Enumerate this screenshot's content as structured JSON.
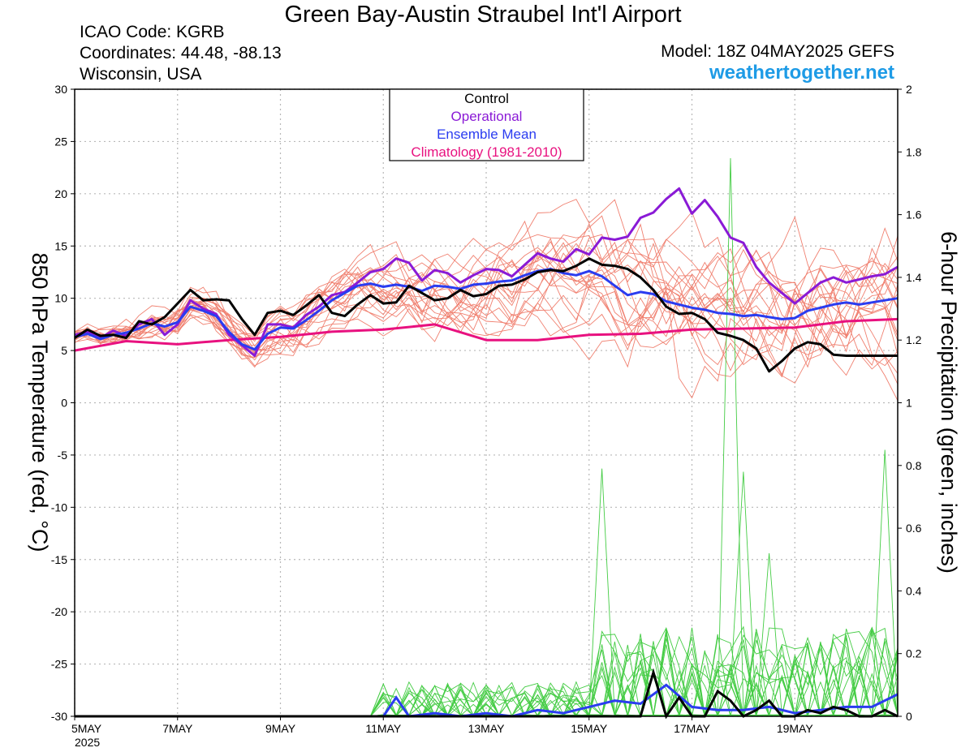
{
  "header": {
    "title": "Green Bay-Austin Straubel Int'l Airport",
    "icao": "ICAO Code: KGRB",
    "coordinates": "Coordinates: 44.48, -88.13",
    "state": "Wisconsin, USA",
    "model": "Model: 18Z 04MAY2025 GEFS",
    "site": "weathertogether.net"
  },
  "chart_data": {
    "type": "line",
    "xlim": [
      0,
      16
    ],
    "x_ticks": [
      {
        "day": 0,
        "label": "5MAY",
        "sublabel": "2025"
      },
      {
        "day": 2,
        "label": "7MAY"
      },
      {
        "day": 4,
        "label": "9MAY"
      },
      {
        "day": 6,
        "label": "11MAY"
      },
      {
        "day": 8,
        "label": "13MAY"
      },
      {
        "day": 10,
        "label": "15MAY"
      },
      {
        "day": 12,
        "label": "17MAY"
      },
      {
        "day": 14,
        "label": "19MAY"
      }
    ],
    "left_axis": {
      "label": "850 hPa Temperature (red, °C)",
      "ylim": [
        -30,
        30
      ],
      "ticks": [
        "30",
        "25",
        "20",
        "15",
        "10",
        "5",
        "0",
        "-5",
        "-10",
        "-15",
        "-20",
        "-25",
        "-30"
      ]
    },
    "right_axis": {
      "label": "6-hour Precipitation (green, inches)",
      "ylim": [
        0,
        2
      ],
      "ticks": [
        "2",
        "1.8",
        "1.6",
        "1.4",
        "1.2",
        "1",
        "0.8",
        "0.6",
        "0.4",
        "0.2",
        "0"
      ]
    },
    "grid": true,
    "legend": {
      "placement": "top-center",
      "entries": [
        {
          "label": "Control",
          "color": "#000000"
        },
        {
          "label": "Operational",
          "color": "#8a1ad6"
        },
        {
          "label": "Ensemble Mean",
          "color": "#2a3cf0"
        },
        {
          "label": "Climatology (1981-2010)",
          "color": "#e8117f"
        }
      ]
    },
    "colors": {
      "members_temp": "#f08070",
      "members_precip": "#44cc44",
      "control": "#000000",
      "operational": "#8a1ad6",
      "ensemble_mean": "#2a3cf0",
      "climatology": "#e8117f"
    },
    "temp_series": [
      {
        "key": "operational",
        "x": [
          0,
          0.25,
          0.5,
          0.75,
          1,
          1.25,
          1.5,
          1.75,
          2,
          2.25,
          2.5,
          2.75,
          3,
          3.25,
          3.5,
          3.75,
          4,
          4.25,
          4.5,
          4.75,
          5,
          5.25,
          5.5,
          5.75,
          6,
          6.25,
          6.5,
          6.75,
          7,
          7.25,
          7.5,
          7.75,
          8,
          8.25,
          8.5,
          8.75,
          9,
          9.25,
          9.5,
          9.75,
          10,
          10.25,
          10.5,
          10.75,
          11,
          11.25,
          11.5,
          11.75,
          12,
          12.25,
          12.5,
          12.75,
          13,
          13.25,
          13.5,
          13.75,
          14,
          14.25,
          14.5,
          14.75,
          15,
          15.25,
          15.5,
          15.75,
          16
        ],
        "y": [
          6.5,
          6.8,
          6.2,
          6.9,
          6.4,
          7.5,
          8,
          6.5,
          7.5,
          9.8,
          9,
          8.5,
          6.5,
          5.5,
          4.5,
          7.5,
          7.5,
          7.2,
          8.4,
          9.2,
          10.3,
          10.6,
          11.5,
          12.5,
          12.8,
          13.8,
          13.4,
          11.7,
          12.7,
          12.4,
          11.5,
          12.2,
          12.8,
          12.7,
          12.1,
          13.2,
          14.3,
          13.8,
          13.5,
          14.7,
          14.2,
          15.8,
          15.6,
          15.9,
          17.7,
          18.2,
          19.5,
          20.5,
          18.1,
          19.4,
          17.8,
          15.8,
          15.3,
          13,
          11.5,
          10.5,
          9.5,
          10.5,
          11.5,
          12,
          11.5,
          11.8,
          12.1,
          12.3,
          13
        ]
      },
      {
        "key": "ensemble_mean",
        "x": [
          0,
          0.25,
          0.5,
          0.75,
          1,
          1.25,
          1.5,
          1.75,
          2,
          2.25,
          2.5,
          2.75,
          3,
          3.25,
          3.5,
          3.75,
          4,
          4.25,
          4.5,
          4.75,
          5,
          5.25,
          5.5,
          5.75,
          6,
          6.25,
          6.5,
          6.75,
          7,
          7.25,
          7.5,
          7.75,
          8,
          8.25,
          8.5,
          8.75,
          9,
          9.25,
          9.5,
          9.75,
          10,
          10.25,
          10.5,
          10.75,
          11,
          11.25,
          11.5,
          11.75,
          12,
          12.25,
          12.5,
          12.75,
          13,
          13.25,
          13.5,
          13.75,
          14,
          14.25,
          14.5,
          14.75,
          15,
          15.25,
          15.5,
          15.75,
          16
        ],
        "y": [
          6.3,
          6.6,
          6.1,
          6.5,
          6.7,
          7.1,
          7.6,
          7.3,
          7.7,
          9.2,
          8.8,
          8.3,
          6.8,
          5.6,
          5.1,
          6.6,
          7.2,
          7.1,
          7.9,
          8.8,
          9.8,
          10.5,
          11.2,
          11.4,
          11.1,
          11.3,
          11.1,
          10.7,
          11.2,
          11.1,
          10.9,
          11.3,
          11.4,
          11.6,
          11.7,
          12.2,
          12.6,
          12.8,
          12.4,
          12.2,
          12.6,
          12.1,
          11.2,
          10.3,
          10.6,
          10.4,
          9.7,
          9.4,
          9.1,
          8.9,
          8.6,
          8.5,
          8.3,
          8.4,
          8.2,
          8,
          8.1,
          8.8,
          9.1,
          9.4,
          9.6,
          9.4,
          9.6,
          9.8,
          10
        ]
      },
      {
        "key": "control",
        "x": [
          0,
          0.25,
          0.5,
          0.75,
          1,
          1.25,
          1.5,
          1.75,
          2,
          2.25,
          2.5,
          2.75,
          3,
          3.25,
          3.5,
          3.75,
          4,
          4.25,
          4.5,
          4.75,
          5,
          5.25,
          5.5,
          5.75,
          6,
          6.25,
          6.5,
          6.75,
          7,
          7.25,
          7.5,
          7.75,
          8,
          8.25,
          8.5,
          8.75,
          9,
          9.25,
          9.5,
          9.75,
          10,
          10.25,
          10.5,
          10.75,
          11,
          11.25,
          11.5,
          11.75,
          12,
          12.25,
          12.5,
          12.75,
          13,
          13.25,
          13.5,
          13.75,
          14,
          14.25,
          14.5,
          14.75,
          15,
          15.25,
          15.5,
          15.75,
          16
        ],
        "y": [
          6.2,
          7,
          6.4,
          6.5,
          6.2,
          7.8,
          7.5,
          8.2,
          9.5,
          10.8,
          9.8,
          9.9,
          9.8,
          8,
          6.5,
          8.6,
          8.8,
          8.4,
          9.3,
          10.3,
          8.6,
          8.3,
          9.4,
          10.3,
          9.5,
          9.6,
          11.2,
          10.5,
          9.8,
          10,
          10.8,
          10.2,
          10.4,
          11.2,
          11.3,
          11.8,
          12.5,
          12.7,
          12.6,
          13.1,
          13.8,
          13.2,
          13.1,
          12.8,
          12,
          10.8,
          9.2,
          8.5,
          8.6,
          8,
          6.7,
          6.4,
          6,
          5.2,
          3,
          4,
          5.2,
          5.8,
          5.6,
          4.6,
          4.5,
          4.5,
          4.5,
          4.5,
          4.5
        ]
      },
      {
        "key": "climatology",
        "x": [
          0,
          1,
          2,
          3,
          4,
          5,
          6,
          7,
          8,
          9,
          10,
          11,
          12,
          13,
          14,
          15,
          16
        ],
        "y": [
          5,
          5.9,
          5.6,
          6,
          6.3,
          6.8,
          7,
          7.5,
          6,
          6,
          6.5,
          6.6,
          7,
          7.1,
          7.2,
          7.8,
          8
        ]
      }
    ],
    "precip_series": [
      {
        "key": "ensemble_mean",
        "x": [
          0,
          0.5,
          1,
          1.5,
          2,
          2.5,
          3,
          3.5,
          4,
          4.5,
          5,
          5.5,
          6,
          6.25,
          6.5,
          7,
          7.5,
          8,
          8.5,
          9,
          9.5,
          10,
          10.5,
          11,
          11.5,
          12,
          12.5,
          13,
          13.5,
          14,
          14.5,
          15,
          15.5,
          16
        ],
        "y": [
          0,
          0,
          0,
          0,
          0,
          0,
          0,
          0,
          0,
          0,
          0,
          0,
          0,
          0.06,
          0,
          0.01,
          0,
          0.01,
          0,
          0.02,
          0.01,
          0.03,
          0.05,
          0.04,
          0.1,
          0.03,
          0.02,
          0.02,
          0.03,
          0.01,
          0.02,
          0.03,
          0.03,
          0.07
        ]
      },
      {
        "key": "control",
        "x": [
          0,
          0.5,
          1,
          1.5,
          2,
          2.5,
          3,
          3.5,
          4,
          4.5,
          5,
          5.5,
          6,
          6.5,
          7,
          7.5,
          8,
          8.5,
          9,
          9.5,
          10,
          10.5,
          10.75,
          11,
          11.25,
          11.5,
          11.75,
          12,
          12.25,
          12.5,
          12.75,
          13,
          13.25,
          13.5,
          13.75,
          14,
          14.25,
          14.5,
          14.75,
          15,
          15.25,
          15.5,
          15.75,
          16
        ],
        "y": [
          0,
          0,
          0,
          0,
          0,
          0,
          0,
          0,
          0,
          0,
          0,
          0,
          0,
          0,
          0,
          0,
          0,
          0,
          0,
          0,
          0,
          0,
          0,
          0,
          0.14,
          0,
          0.06,
          0,
          0,
          0.08,
          0.05,
          0,
          0.02,
          0.05,
          0,
          0,
          0.02,
          0.01,
          0.03,
          0.02,
          0,
          0,
          0.02,
          0
        ]
      }
    ]
  }
}
